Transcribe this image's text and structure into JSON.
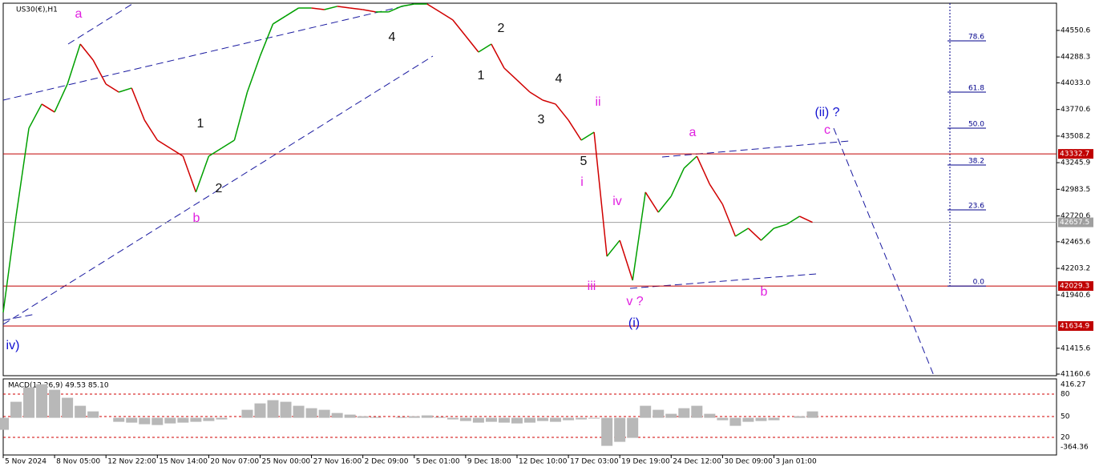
{
  "chart_data": {
    "type": "line",
    "title": "US30(€),H1",
    "xlim": [
      0,
      82
    ],
    "xticks": [
      {
        "value": 0,
        "label": "5 Nov 2024"
      },
      {
        "value": 4,
        "label": "8 Nov 05:00"
      },
      {
        "value": 8,
        "label": "12 Nov 22:00"
      },
      {
        "value": 12,
        "label": "15 Nov 14:00"
      },
      {
        "value": 16,
        "label": "20 Nov 07:00"
      },
      {
        "value": 20,
        "label": "25 Nov 00:00"
      },
      {
        "value": 24,
        "label": "27 Nov 16:00"
      },
      {
        "value": 28,
        "label": "2 Dec 09:00"
      },
      {
        "value": 32,
        "label": "5 Dec 01:00"
      },
      {
        "value": 36,
        "label": "9 Dec 18:00"
      },
      {
        "value": 40,
        "label": "12 Dec 10:00"
      },
      {
        "value": 44,
        "label": "17 Dec 03:00"
      },
      {
        "value": 48,
        "label": "19 Dec 19:00"
      },
      {
        "value": 52,
        "label": "24 Dec 12:00"
      },
      {
        "value": 56,
        "label": "30 Dec 09:00"
      },
      {
        "value": 60,
        "label": "3 Jan 01:00"
      }
    ],
    "ylim": [
      41145,
      44819
    ],
    "yticks": [
      44550.6,
      44288.3,
      {
        "value": 44033,
        "label": "44033.0"
      },
      43770.6,
      43508.2,
      43245.9,
      42983.5,
      42720.6,
      42465.6,
      42203.2,
      41940.6,
      41415.6,
      41160.6
    ],
    "up_color": "#00a000",
    "down_color": "#d00000",
    "series": [
      {
        "values": [
          41769,
          42717,
          43586,
          43824,
          43745,
          44021,
          44416,
          44258,
          44021,
          43942,
          43982,
          43666,
          43468,
          43389,
          43310,
          42955,
          43310,
          43389,
          43468,
          43942,
          44298,
          44614,
          44693,
          44772,
          44772,
          44756,
          44788,
          44772,
          44756,
          44733,
          44733,
          44788,
          44811,
          44811,
          44733,
          44654,
          44496,
          44337,
          44416,
          44179,
          44061,
          43942,
          43863,
          43824,
          43666,
          43468,
          43547,
          42322,
          42480,
          42085,
          42955,
          42757,
          42915,
          43191,
          43310,
          43033,
          42836,
          42520,
          42599,
          42480,
          42599,
          42638,
          42717,
          42657.5
        ]
      }
    ],
    "levels": [
      {
        "price": 43332.7,
        "color": "#c00000"
      },
      {
        "price": 42657.5,
        "color": "#a0a0a0"
      },
      {
        "price": 42029.3,
        "color": "#c00000"
      },
      {
        "price": 41634.9,
        "color": "#c00000"
      }
    ],
    "fib": {
      "color": "#00008b",
      "levels": [
        {
          "label": "78.6",
          "price": 44448
        },
        {
          "label": "61.8",
          "price": 43942
        },
        {
          "label": "50.0",
          "price": 43586
        },
        {
          "label": "38.2",
          "price": 43223
        },
        {
          "label": "23.6",
          "price": 42781
        },
        {
          "label": "0.0",
          "price": 42029.3
        }
      ]
    },
    "annotations": [
      {
        "text": "iv)",
        "color": "#1010d0"
      },
      {
        "text": "a",
        "color": "#e020e0"
      },
      {
        "text": "1",
        "color": "#111111"
      },
      {
        "text": "2",
        "color": "#111111"
      },
      {
        "text": "b",
        "color": "#e020e0"
      },
      {
        "text": "4",
        "color": "#111111"
      },
      {
        "text": "2",
        "color": "#111111"
      },
      {
        "text": "1",
        "color": "#111111"
      },
      {
        "text": "4",
        "color": "#111111"
      },
      {
        "text": "3",
        "color": "#111111"
      },
      {
        "text": "5",
        "color": "#111111"
      },
      {
        "text": "ii",
        "color": "#e020e0"
      },
      {
        "text": "i",
        "color": "#e020e0"
      },
      {
        "text": "iv",
        "color": "#e020e0"
      },
      {
        "text": "iii",
        "color": "#e020e0"
      },
      {
        "text": "v ?",
        "color": "#e020e0"
      },
      {
        "text": "(i)",
        "color": "#1010d0"
      },
      {
        "text": "a",
        "color": "#e020e0"
      },
      {
        "text": "b",
        "color": "#e020e0"
      },
      {
        "text": "(ii) ?",
        "color": "#1010d0"
      },
      {
        "text": "c",
        "color": "#e020e0"
      }
    ],
    "macd": {
      "label": "MACD(12,26,9) 49.53 85.10",
      "ylim": [
        -464,
        486
      ],
      "color": "#b8b8b8",
      "axis_labels": [
        "416.27",
        "80",
        "50",
        "20",
        "-364.36"
      ],
      "values": [
        -150,
        200,
        380,
        420,
        350,
        250,
        150,
        80,
        0,
        -50,
        -60,
        -80,
        -90,
        -70,
        -60,
        -50,
        -40,
        -20,
        0,
        100,
        180,
        220,
        200,
        150,
        120,
        100,
        60,
        40,
        20,
        10,
        0,
        10,
        20,
        30,
        10,
        -20,
        -40,
        -60,
        -50,
        -60,
        -70,
        -60,
        -40,
        -50,
        -30,
        -20,
        -10,
        -350,
        -300,
        -250,
        150,
        100,
        50,
        120,
        150,
        50,
        -30,
        -100,
        -50,
        -40,
        -30,
        0,
        20,
        80
      ]
    }
  }
}
